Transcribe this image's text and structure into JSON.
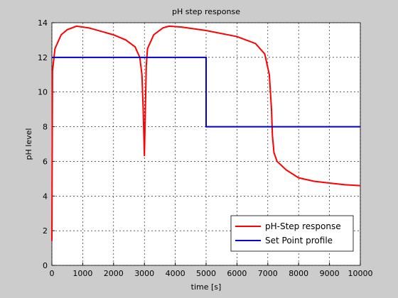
{
  "chart_data": {
    "type": "line",
    "title": "pH step response",
    "x_label": "time [s]",
    "y_label": "pH level",
    "xlim": [
      0,
      10000
    ],
    "ylim": [
      0,
      14
    ],
    "xticks": [
      0,
      1000,
      2000,
      3000,
      4000,
      5000,
      6000,
      7000,
      8000,
      9000,
      10000
    ],
    "yticks": [
      0,
      2,
      4,
      6,
      8,
      10,
      12,
      14
    ],
    "grid": true,
    "legend_position": "lower right",
    "series": [
      {
        "name": "pH-Step response",
        "color": "#ff0000",
        "x": [
          0,
          20,
          100,
          300,
          500,
          800,
          1200,
          1600,
          2000,
          2400,
          2700,
          2850,
          2920,
          2960,
          3000,
          3030,
          3060,
          3100,
          3300,
          3600,
          3800,
          4200,
          5000,
          6000,
          6600,
          6900,
          7050,
          7120,
          7150,
          7200,
          7300,
          7600,
          8000,
          8500,
          9000,
          9500,
          10000
        ],
        "values": [
          1.4,
          11.2,
          12.5,
          13.3,
          13.6,
          13.8,
          13.7,
          13.5,
          13.3,
          13.0,
          12.6,
          12.0,
          11.0,
          9.0,
          6.3,
          9.0,
          11.5,
          12.5,
          13.3,
          13.7,
          13.8,
          13.75,
          13.55,
          13.2,
          12.8,
          12.2,
          11.0,
          9.0,
          7.5,
          6.5,
          6.0,
          5.5,
          5.05,
          4.85,
          4.75,
          4.65,
          4.6
        ]
      },
      {
        "name": "Set Point profile",
        "color": "#0000cc",
        "x": [
          0,
          5000,
          5000,
          10000
        ],
        "values": [
          12,
          12,
          8,
          8
        ]
      }
    ]
  }
}
